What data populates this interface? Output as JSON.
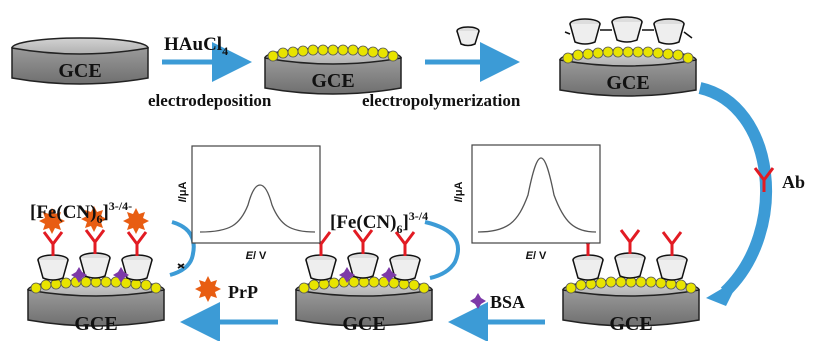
{
  "electrode_label": "GCE",
  "steps": {
    "gold_precursor": "HAuCl",
    "gold_precursor_sub": "4",
    "electrodeposition": "electrodeposition",
    "electropolymerization": "electropolymerization"
  },
  "legend": {
    "antibody": "Ab",
    "bsa": "BSA",
    "prion": "PrP"
  },
  "probe": {
    "prefix": "[Fe(CN)",
    "sub": "6",
    "suffix": "]",
    "charge": "3-/4-",
    "charge_short": "3-/4"
  },
  "plots": {
    "ylabel_var": "I",
    "ylabel_unit": "/μA",
    "xlabel_var": "E",
    "xlabel_unit": "/ V"
  },
  "colors": {
    "arrow": "#3c9bd6",
    "gold": "#e8e400",
    "antibody": "#e21b23",
    "bsa": "#7d3aa8",
    "prion": "#e85d12",
    "electrode_top": "#b9b9b9",
    "electrode_side": "#8a8a8a"
  }
}
